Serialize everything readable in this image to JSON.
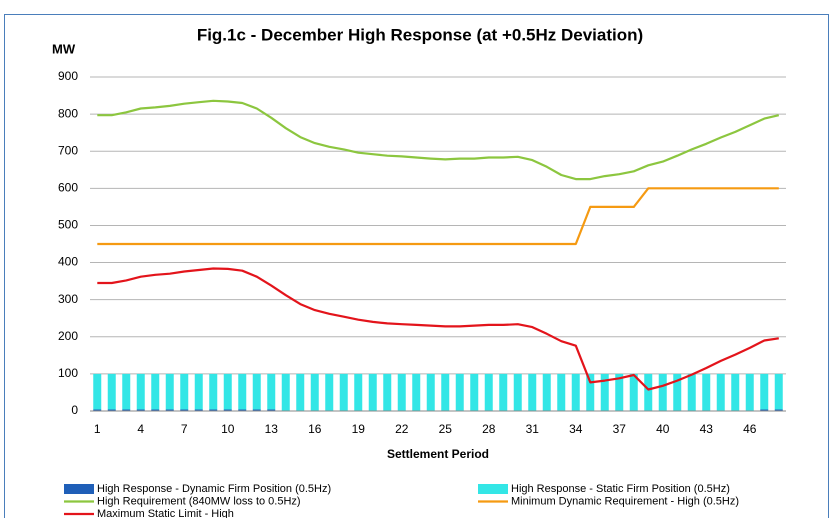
{
  "chart_data": {
    "type": "combo",
    "title": "Fig.1c - December High Response (at +0.5Hz Deviation)",
    "y_label": "MW",
    "x_label": "Settlement Period",
    "categories": [
      "1",
      null,
      null,
      "4",
      null,
      null,
      "7",
      null,
      null,
      "10",
      null,
      null,
      "13",
      null,
      null,
      "16",
      null,
      null,
      "19",
      null,
      null,
      "22",
      null,
      null,
      "25",
      null,
      null,
      "28",
      null,
      null,
      "31",
      null,
      null,
      "34",
      null,
      null,
      "37",
      null,
      null,
      "40",
      null,
      null,
      "43",
      null,
      null,
      "46",
      null,
      null
    ],
    "ylim": [
      0,
      900
    ],
    "yticks": [
      0,
      100,
      200,
      300,
      400,
      500,
      600,
      700,
      800,
      900
    ],
    "grid": true,
    "stacked": true,
    "legend": "bottom",
    "series": [
      {
        "name": "High Response - Dynamic Firm Position (0.5Hz)",
        "type": "bar",
        "color": "#1f5fb8",
        "values": [
          4,
          4,
          4,
          4,
          4,
          4,
          4,
          4,
          4,
          4,
          4,
          4,
          4,
          0,
          0,
          0,
          0,
          0,
          0,
          0,
          0,
          0,
          0,
          0,
          0,
          0,
          0,
          0,
          0,
          0,
          0,
          0,
          0,
          0,
          0,
          0,
          0,
          0,
          0,
          0,
          0,
          0,
          0,
          0,
          0,
          0,
          4,
          4
        ]
      },
      {
        "name": "High Response - Static Firm Position (0.5Hz)",
        "type": "bar",
        "color": "#33e6e6",
        "values": [
          96,
          96,
          96,
          96,
          96,
          96,
          96,
          96,
          96,
          96,
          96,
          96,
          96,
          100,
          100,
          100,
          100,
          100,
          100,
          100,
          100,
          100,
          100,
          100,
          100,
          100,
          100,
          100,
          100,
          100,
          100,
          100,
          100,
          100,
          100,
          100,
          100,
          100,
          100,
          100,
          100,
          100,
          100,
          100,
          100,
          100,
          96,
          96
        ]
      },
      {
        "name": "High Requirement (840MW loss to 0.5Hz)",
        "type": "line",
        "color": "#8cc63f",
        "values": [
          797,
          797,
          805,
          815,
          818,
          822,
          828,
          832,
          836,
          834,
          830,
          815,
          790,
          762,
          738,
          722,
          712,
          705,
          696,
          692,
          688,
          686,
          683,
          680,
          678,
          680,
          680,
          683,
          683,
          685,
          676,
          658,
          636,
          625,
          625,
          633,
          638,
          646,
          662,
          672,
          688,
          705,
          720,
          737,
          752,
          770,
          788,
          797
        ]
      },
      {
        "name": "Minimum Dynamic Requirement - High (0.5Hz)",
        "type": "line",
        "color": "#f59a12",
        "values": [
          450,
          450,
          450,
          450,
          450,
          450,
          450,
          450,
          450,
          450,
          450,
          450,
          450,
          450,
          450,
          450,
          450,
          450,
          450,
          450,
          450,
          450,
          450,
          450,
          450,
          450,
          450,
          450,
          450,
          450,
          450,
          450,
          450,
          450,
          550,
          550,
          550,
          550,
          600,
          600,
          600,
          600,
          600,
          600,
          600,
          600,
          600,
          600
        ]
      },
      {
        "name": "Maximum Static Limit - High",
        "type": "line",
        "color": "#e3141b",
        "values": [
          345,
          345,
          352,
          362,
          367,
          370,
          376,
          380,
          384,
          383,
          378,
          362,
          338,
          312,
          288,
          272,
          262,
          254,
          246,
          240,
          236,
          234,
          232,
          230,
          228,
          228,
          230,
          232,
          232,
          234,
          226,
          208,
          188,
          176,
          77,
          82,
          88,
          97,
          58,
          68,
          82,
          98,
          116,
          135,
          152,
          170,
          190,
          196
        ]
      }
    ]
  }
}
